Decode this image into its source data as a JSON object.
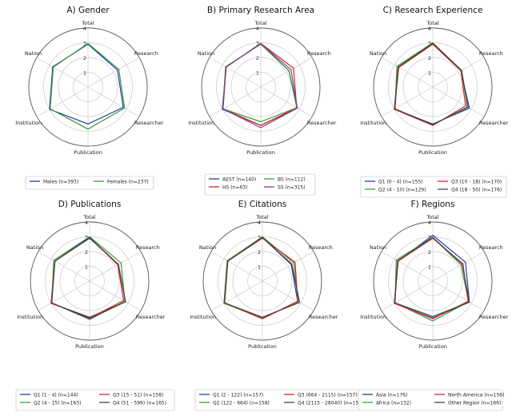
{
  "chart_data": [
    {
      "type": "radar",
      "title": "A) Gender",
      "axes": [
        "Total",
        "Research",
        "Researcher",
        "Publication",
        "Institution",
        "Nation"
      ],
      "rlim": [
        0,
        4
      ],
      "rticks": [
        "1",
        "2",
        "3",
        "4"
      ],
      "series": [
        {
          "name": "Males (n=393)",
          "color": "#1f3fa8",
          "values": [
            2.9,
            2.3,
            2.75,
            2.5,
            3.0,
            2.75
          ]
        },
        {
          "name": "Females (n=237)",
          "color": "#3a9a3a",
          "values": [
            2.95,
            2.4,
            2.85,
            2.85,
            2.95,
            2.7
          ]
        }
      ]
    },
    {
      "type": "radar",
      "title": "B) Primary Research Area",
      "axes": [
        "Total",
        "Research",
        "Researcher",
        "Publication",
        "Institution",
        "Nation"
      ],
      "rlim": [
        0,
        4
      ],
      "rticks": [
        "1",
        "2",
        "3",
        "4"
      ],
      "series": [
        {
          "name": "AEST (n=140)",
          "color": "#1f3fa8",
          "values": [
            2.95,
            2.2,
            2.85,
            2.6,
            3.0,
            2.7
          ]
        },
        {
          "name": "HS (n=63)",
          "color": "#d62728",
          "values": [
            2.95,
            2.55,
            2.8,
            2.6,
            2.95,
            2.7
          ]
        },
        {
          "name": "BS (n=112)",
          "color": "#3a9a3a",
          "values": [
            2.9,
            2.2,
            2.8,
            2.35,
            2.95,
            2.75
          ]
        },
        {
          "name": "SS (n=315)",
          "color": "#8a3a8a",
          "values": [
            2.95,
            2.35,
            2.85,
            2.75,
            2.95,
            2.7
          ]
        }
      ]
    },
    {
      "type": "radar",
      "title": "C) Research Experience",
      "axes": [
        "Total",
        "Research",
        "Researcher",
        "Publication",
        "Institution",
        "Nation"
      ],
      "rlim": [
        0,
        4
      ],
      "rticks": [
        "1",
        "2",
        "3",
        "4"
      ],
      "series": [
        {
          "name": "Q1 (0 - 4) (n=155)",
          "color": "#1f3fa8",
          "values": [
            2.95,
            2.2,
            2.85,
            2.5,
            3.0,
            2.7
          ]
        },
        {
          "name": "Q2 (4 - 10) (n=129)",
          "color": "#3a9a3a",
          "values": [
            3.0,
            2.25,
            2.75,
            2.55,
            2.95,
            2.8
          ]
        },
        {
          "name": "Q3 (10 - 18) (n=170)",
          "color": "#d62728",
          "values": [
            2.9,
            2.2,
            2.55,
            2.6,
            3.0,
            2.65
          ]
        },
        {
          "name": "Q4 (18 - 50) (n=176)",
          "color": "#444444",
          "values": [
            2.95,
            2.25,
            2.7,
            2.55,
            2.95,
            2.7
          ]
        }
      ]
    },
    {
      "type": "radar",
      "title": "D) Publications",
      "axes": [
        "Total",
        "Research",
        "Researcher",
        "Publication",
        "Institution",
        "Nation"
      ],
      "rlim": [
        0,
        4
      ],
      "rticks": [
        "1",
        "2",
        "3",
        "4"
      ],
      "series": [
        {
          "name": "Q1 (1 - 4) (n=144)",
          "color": "#1f3fa8",
          "values": [
            2.9,
            2.25,
            2.8,
            2.45,
            3.0,
            2.7
          ]
        },
        {
          "name": "Q2 (4 - 15) (n=163)",
          "color": "#3a9a3a",
          "values": [
            3.0,
            2.45,
            2.75,
            2.6,
            2.95,
            2.8
          ]
        },
        {
          "name": "Q3 (15 - 51) (n=158)",
          "color": "#d62728",
          "values": [
            2.95,
            2.2,
            2.65,
            2.5,
            3.0,
            2.7
          ]
        },
        {
          "name": "Q4 (51 - 599) (n=165)",
          "color": "#444444",
          "values": [
            2.95,
            2.25,
            2.8,
            2.55,
            2.95,
            2.7
          ]
        }
      ]
    },
    {
      "type": "radar",
      "title": "E) Citations",
      "axes": [
        "Total",
        "Research",
        "Researcher",
        "Publication",
        "Institution",
        "Nation"
      ],
      "rlim": [
        0,
        4
      ],
      "rticks": [
        "1",
        "2",
        "3",
        "4"
      ],
      "series": [
        {
          "name": "Q1 (2 - 122) (n=157)",
          "color": "#1f3fa8",
          "values": [
            2.95,
            2.25,
            2.75,
            2.55,
            2.95,
            2.7
          ]
        },
        {
          "name": "Q2 (122 - 664) (n=158)",
          "color": "#3a9a3a",
          "values": [
            3.0,
            2.45,
            2.8,
            2.5,
            3.0,
            2.75
          ]
        },
        {
          "name": "Q3 (664 - 2115) (n=157)",
          "color": "#d62728",
          "values": [
            2.9,
            2.55,
            2.75,
            2.55,
            2.95,
            2.7
          ]
        },
        {
          "name": "Q4 (2115 - 28040) (n=158)",
          "color": "#444444",
          "values": [
            2.95,
            2.3,
            2.9,
            2.45,
            2.95,
            2.7
          ]
        }
      ]
    },
    {
      "type": "radar",
      "title": "F) Regions",
      "axes": [
        "Total",
        "Research",
        "Researcher",
        "Publication",
        "Institution",
        "Nation"
      ],
      "rlim": [
        0,
        4
      ],
      "rticks": [
        "1",
        "2",
        "3",
        "4"
      ],
      "series": [
        {
          "name": "Asia (n=176)",
          "color": "#1f3fa8",
          "values": [
            3.1,
            2.55,
            2.85,
            2.5,
            3.0,
            2.7
          ]
        },
        {
          "name": "Africa (n=132)",
          "color": "#3a9a3a",
          "values": [
            2.95,
            2.2,
            2.8,
            2.7,
            2.95,
            2.85
          ]
        },
        {
          "name": "North America (n=156)",
          "color": "#d62728",
          "values": [
            2.9,
            2.35,
            2.75,
            2.55,
            3.0,
            2.7
          ]
        },
        {
          "name": "Other Region (n=166)",
          "color": "#444444",
          "values": [
            2.95,
            2.3,
            2.85,
            2.4,
            2.95,
            2.75
          ]
        }
      ]
    }
  ]
}
